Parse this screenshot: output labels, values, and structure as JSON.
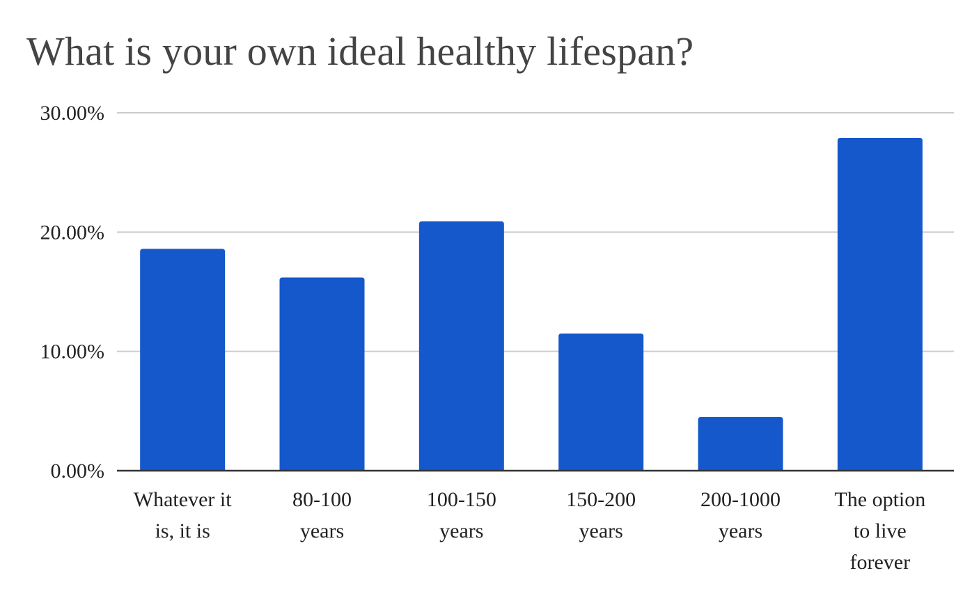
{
  "chart_data": {
    "type": "bar",
    "title": "What is your own ideal healthy lifespan?",
    "xlabel": "",
    "ylabel": "",
    "categories": [
      [
        "Whatever it",
        "is, it is"
      ],
      [
        "80-100",
        "years"
      ],
      [
        "100-150",
        "years"
      ],
      [
        "150-200",
        "years"
      ],
      [
        "200-1000",
        "years"
      ],
      [
        "The option",
        "to live",
        "forever"
      ]
    ],
    "values": [
      18.6,
      16.2,
      20.9,
      11.5,
      4.5,
      27.9
    ],
    "ylim": [
      0,
      30
    ],
    "yticks": [
      0,
      10,
      20,
      30
    ],
    "ytick_labels": [
      "0.00%",
      "10.00%",
      "20.00%",
      "30.00%"
    ],
    "grid": true,
    "legend": "none",
    "bar_color": "#1558CC",
    "grid_color": "#CCCCCC",
    "axis_color": "#333333"
  }
}
